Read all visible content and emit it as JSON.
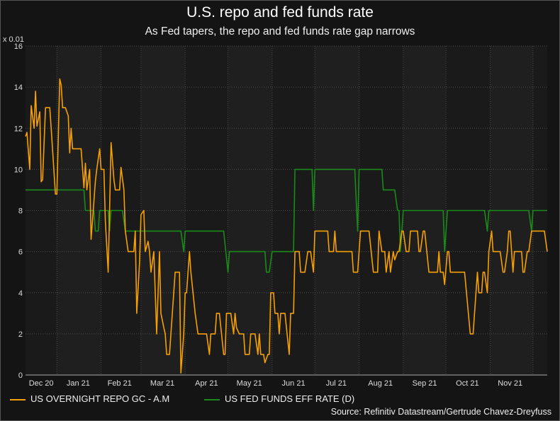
{
  "chart_data": {
    "type": "line",
    "title": "U.S. repo and fed funds rate",
    "subtitle": "As Fed tapers, the repo and fed funds rate gap narrows",
    "y_multiplier_label": "x 0.01",
    "xlim": [
      "2020-12-10",
      "2021-12-11"
    ],
    "ylim": [
      0,
      16
    ],
    "yticks": [
      0,
      2,
      4,
      6,
      8,
      10,
      12,
      14,
      16
    ],
    "xticks": [
      {
        "label": "Dec 20",
        "date": "2020-12-21"
      },
      {
        "label": "Jan 21",
        "date": "2021-01-16"
      },
      {
        "label": "Feb 21",
        "date": "2021-02-14"
      },
      {
        "label": "Mar 21",
        "date": "2021-03-16"
      },
      {
        "label": "Apr 21",
        "date": "2021-04-16"
      },
      {
        "label": "May 21",
        "date": "2021-05-16"
      },
      {
        "label": "Jun 21",
        "date": "2021-06-16"
      },
      {
        "label": "Jul 21",
        "date": "2021-07-16"
      },
      {
        "label": "Aug 21",
        "date": "2021-08-16"
      },
      {
        "label": "Sep 21",
        "date": "2021-09-16"
      },
      {
        "label": "Oct 21",
        "date": "2021-10-16"
      },
      {
        "label": "Nov 21",
        "date": "2021-11-15"
      }
    ],
    "month_gridlines": [
      "2021-01-01",
      "2021-02-01",
      "2021-03-01",
      "2021-04-01",
      "2021-05-01",
      "2021-06-01",
      "2021-07-01",
      "2021-08-01",
      "2021-09-01",
      "2021-10-01",
      "2021-11-01",
      "2021-12-01"
    ],
    "grid": true,
    "legend_placement": "bottom-left",
    "series": [
      {
        "name": "US OVERNIGHT REPO GC - A.M",
        "color": "#f5a000",
        "points": [
          [
            "2020-12-10",
            11.6
          ],
          [
            "2020-12-11",
            11.8
          ],
          [
            "2020-12-13",
            10
          ],
          [
            "2020-12-14",
            13.1
          ],
          [
            "2020-12-16",
            12
          ],
          [
            "2020-12-17",
            13.8
          ],
          [
            "2020-12-18",
            12.1
          ],
          [
            "2020-12-20",
            12.8
          ],
          [
            "2020-12-21",
            9.4
          ],
          [
            "2020-12-22",
            9.5
          ],
          [
            "2020-12-24",
            13
          ],
          [
            "2020-12-27",
            13
          ],
          [
            "2020-12-28",
            12
          ],
          [
            "2020-12-31",
            8.8
          ],
          [
            "2021-01-01",
            8.8
          ],
          [
            "2021-01-03",
            14.4
          ],
          [
            "2021-01-04",
            14.1
          ],
          [
            "2021-01-05",
            13
          ],
          [
            "2021-01-07",
            13
          ],
          [
            "2021-01-09",
            12.6
          ],
          [
            "2021-01-10",
            10.8
          ],
          [
            "2021-01-11",
            12
          ],
          [
            "2021-01-12",
            11
          ],
          [
            "2021-01-18",
            11
          ],
          [
            "2021-01-20",
            9.1
          ],
          [
            "2021-01-21",
            10.3
          ],
          [
            "2021-01-22",
            9
          ],
          [
            "2021-01-24",
            10
          ],
          [
            "2021-01-25",
            6.6
          ],
          [
            "2021-01-26",
            7.5
          ],
          [
            "2021-01-28",
            9.4
          ],
          [
            "2021-01-29",
            10
          ],
          [
            "2021-01-31",
            11
          ],
          [
            "2021-02-01",
            10
          ],
          [
            "2021-02-03",
            10
          ],
          [
            "2021-02-04",
            7.5
          ],
          [
            "2021-02-06",
            5
          ],
          [
            "2021-02-07",
            8
          ],
          [
            "2021-02-08",
            11.3
          ],
          [
            "2021-02-10",
            9.5
          ],
          [
            "2021-02-11",
            9
          ],
          [
            "2021-02-14",
            9
          ],
          [
            "2021-02-15",
            10.1
          ],
          [
            "2021-02-17",
            9
          ],
          [
            "2021-02-18",
            7
          ],
          [
            "2021-02-20",
            6
          ],
          [
            "2021-02-24",
            6
          ],
          [
            "2021-02-25",
            7
          ],
          [
            "2021-02-26",
            3
          ],
          [
            "2021-02-28",
            5.5
          ],
          [
            "2021-03-01",
            7.8
          ],
          [
            "2021-03-03",
            8
          ],
          [
            "2021-03-04",
            6
          ],
          [
            "2021-03-06",
            6.5
          ],
          [
            "2021-03-07",
            6
          ],
          [
            "2021-03-08",
            5
          ],
          [
            "2021-03-10",
            6
          ],
          [
            "2021-03-11",
            4
          ],
          [
            "2021-03-12",
            2
          ],
          [
            "2021-03-14",
            6
          ],
          [
            "2021-03-15",
            3
          ],
          [
            "2021-03-17",
            2.3
          ],
          [
            "2021-03-18",
            2
          ],
          [
            "2021-03-19",
            1
          ],
          [
            "2021-03-21",
            1
          ],
          [
            "2021-03-24",
            4
          ],
          [
            "2021-03-25",
            5
          ],
          [
            "2021-03-28",
            5
          ],
          [
            "2021-03-29",
            0.1
          ],
          [
            "2021-03-31",
            2
          ],
          [
            "2021-04-01",
            4
          ],
          [
            "2021-04-02",
            4
          ],
          [
            "2021-04-04",
            6
          ],
          [
            "2021-04-05",
            5
          ],
          [
            "2021-04-08",
            3
          ],
          [
            "2021-04-10",
            2
          ],
          [
            "2021-04-16",
            2
          ],
          [
            "2021-04-18",
            1
          ],
          [
            "2021-04-19",
            2
          ],
          [
            "2021-04-22",
            2
          ],
          [
            "2021-04-23",
            3
          ],
          [
            "2021-04-25",
            3
          ],
          [
            "2021-04-28",
            1
          ],
          [
            "2021-04-29",
            1
          ],
          [
            "2021-04-30",
            3
          ],
          [
            "2021-05-03",
            3
          ],
          [
            "2021-05-05",
            2
          ],
          [
            "2021-05-06",
            3
          ],
          [
            "2021-05-07",
            2.3
          ],
          [
            "2021-05-09",
            2
          ],
          [
            "2021-05-12",
            2
          ],
          [
            "2021-05-13",
            1
          ],
          [
            "2021-05-16",
            1
          ],
          [
            "2021-05-17",
            2
          ],
          [
            "2021-05-20",
            2
          ],
          [
            "2021-05-22",
            1
          ],
          [
            "2021-05-23",
            2
          ],
          [
            "2021-05-24",
            1
          ],
          [
            "2021-05-26",
            1
          ],
          [
            "2021-05-27",
            0.6
          ],
          [
            "2021-05-29",
            1
          ],
          [
            "2021-05-30",
            1
          ],
          [
            "2021-05-31",
            4
          ],
          [
            "2021-06-02",
            4
          ],
          [
            "2021-06-03",
            3
          ],
          [
            "2021-06-05",
            3
          ],
          [
            "2021-06-06",
            2
          ],
          [
            "2021-06-07",
            3
          ],
          [
            "2021-06-10",
            3
          ],
          [
            "2021-06-13",
            1
          ],
          [
            "2021-06-14",
            3
          ],
          [
            "2021-06-16",
            3
          ],
          [
            "2021-06-17",
            6
          ],
          [
            "2021-06-20",
            6
          ],
          [
            "2021-06-21",
            5
          ],
          [
            "2021-06-24",
            5
          ],
          [
            "2021-06-26",
            6
          ],
          [
            "2021-06-28",
            6
          ],
          [
            "2021-06-30",
            5
          ],
          [
            "2021-07-01",
            7
          ],
          [
            "2021-07-10",
            7
          ],
          [
            "2021-07-11",
            6
          ],
          [
            "2021-07-14",
            6
          ],
          [
            "2021-07-15",
            7
          ],
          [
            "2021-07-16",
            6
          ],
          [
            "2021-07-27",
            6
          ],
          [
            "2021-07-28",
            5
          ],
          [
            "2021-07-31",
            5
          ],
          [
            "2021-08-02",
            7
          ],
          [
            "2021-08-08",
            7
          ],
          [
            "2021-08-11",
            5
          ],
          [
            "2021-08-14",
            5
          ],
          [
            "2021-08-15",
            7
          ],
          [
            "2021-08-17",
            6
          ],
          [
            "2021-08-19",
            6
          ],
          [
            "2021-08-20",
            5
          ],
          [
            "2021-08-22",
            6
          ],
          [
            "2021-08-23",
            5
          ],
          [
            "2021-08-25",
            6
          ],
          [
            "2021-08-26",
            5.6
          ],
          [
            "2021-08-28",
            6
          ],
          [
            "2021-08-29",
            6
          ],
          [
            "2021-08-31",
            7
          ],
          [
            "2021-09-01",
            7
          ],
          [
            "2021-09-03",
            6
          ],
          [
            "2021-09-05",
            6
          ],
          [
            "2021-09-06",
            7
          ],
          [
            "2021-09-11",
            7
          ],
          [
            "2021-09-12",
            6
          ],
          [
            "2021-09-13",
            6
          ],
          [
            "2021-09-15",
            7
          ],
          [
            "2021-09-16",
            7
          ],
          [
            "2021-09-19",
            5
          ],
          [
            "2021-09-25",
            5
          ],
          [
            "2021-09-26",
            6
          ],
          [
            "2021-09-27",
            5
          ],
          [
            "2021-09-29",
            5
          ],
          [
            "2021-09-30",
            4.4
          ],
          [
            "2021-10-02",
            6
          ],
          [
            "2021-10-03",
            6
          ],
          [
            "2021-10-04",
            5
          ],
          [
            "2021-10-14",
            5
          ],
          [
            "2021-10-18",
            2
          ],
          [
            "2021-10-20",
            2
          ],
          [
            "2021-10-23",
            5
          ],
          [
            "2021-10-24",
            4
          ],
          [
            "2021-10-26",
            4
          ],
          [
            "2021-10-27",
            5
          ],
          [
            "2021-10-28",
            5
          ],
          [
            "2021-10-30",
            4
          ],
          [
            "2021-10-31",
            6
          ],
          [
            "2021-11-02",
            7
          ],
          [
            "2021-11-03",
            6
          ],
          [
            "2021-11-08",
            6
          ],
          [
            "2021-11-10",
            5
          ],
          [
            "2021-11-11",
            5
          ],
          [
            "2021-11-13",
            6
          ],
          [
            "2021-11-14",
            7
          ],
          [
            "2021-11-15",
            7
          ],
          [
            "2021-11-17",
            5
          ],
          [
            "2021-11-18",
            6
          ],
          [
            "2021-11-23",
            6
          ],
          [
            "2021-11-24",
            5
          ],
          [
            "2021-11-25",
            5
          ],
          [
            "2021-11-27",
            6
          ],
          [
            "2021-11-28",
            6
          ],
          [
            "2021-11-30",
            7
          ],
          [
            "2021-12-09",
            7
          ],
          [
            "2021-12-11",
            6
          ]
        ]
      },
      {
        "name": "US FED FUNDS EFF RATE (D)",
        "color": "#1a8a1a",
        "points": [
          [
            "2020-12-10",
            9
          ],
          [
            "2021-01-20",
            9
          ],
          [
            "2021-01-21",
            8
          ],
          [
            "2021-01-27",
            8
          ],
          [
            "2021-01-28",
            7
          ],
          [
            "2021-01-30",
            7
          ],
          [
            "2021-01-31",
            8
          ],
          [
            "2021-02-06",
            8
          ],
          [
            "2021-02-07",
            7
          ],
          [
            "2021-02-08",
            8
          ],
          [
            "2021-02-16",
            8
          ],
          [
            "2021-02-18",
            7
          ],
          [
            "2021-03-29",
            7
          ],
          [
            "2021-03-31",
            6
          ],
          [
            "2021-04-01",
            7
          ],
          [
            "2021-04-28",
            7
          ],
          [
            "2021-05-01",
            5
          ],
          [
            "2021-05-02",
            6
          ],
          [
            "2021-05-27",
            6
          ],
          [
            "2021-05-28",
            5
          ],
          [
            "2021-05-30",
            5
          ],
          [
            "2021-06-01",
            6
          ],
          [
            "2021-06-16",
            6
          ],
          [
            "2021-06-17",
            10
          ],
          [
            "2021-06-29",
            10
          ],
          [
            "2021-06-30",
            8
          ],
          [
            "2021-07-01",
            10
          ],
          [
            "2021-07-29",
            10
          ],
          [
            "2021-07-31",
            7
          ],
          [
            "2021-08-01",
            10
          ],
          [
            "2021-08-17",
            10
          ],
          [
            "2021-08-18",
            9
          ],
          [
            "2021-08-26",
            9
          ],
          [
            "2021-08-28",
            8
          ],
          [
            "2021-08-29",
            8
          ],
          [
            "2021-08-30",
            6
          ],
          [
            "2021-09-01",
            8
          ],
          [
            "2021-09-29",
            8
          ],
          [
            "2021-09-30",
            6
          ],
          [
            "2021-10-02",
            8
          ],
          [
            "2021-10-28",
            8
          ],
          [
            "2021-10-30",
            7
          ],
          [
            "2021-10-31",
            8
          ],
          [
            "2021-11-28",
            8
          ],
          [
            "2021-11-30",
            7
          ],
          [
            "2021-12-01",
            8
          ],
          [
            "2021-12-11",
            8
          ]
        ]
      }
    ],
    "source": "Source: Refinitiv Datastream/Gertrude Chavez-Dreyfuss"
  }
}
